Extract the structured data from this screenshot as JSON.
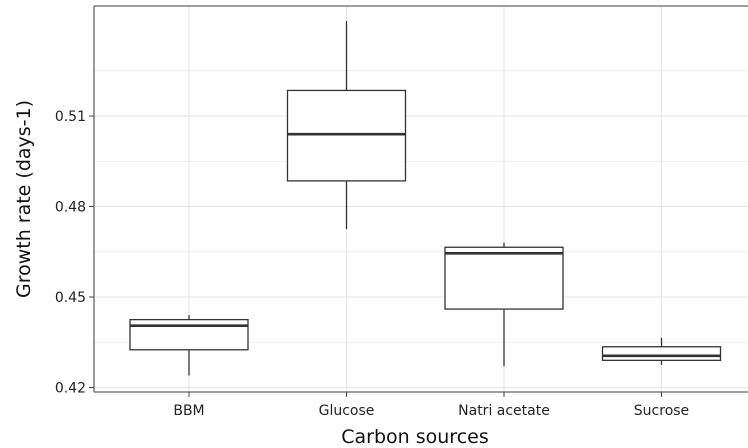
{
  "chart_data": {
    "type": "box",
    "xlabel": "Carbon sources",
    "ylabel": "Growth rate (days-1)",
    "ylim": [
      0.4185,
      0.5465
    ],
    "yticks": [
      0.42,
      0.45,
      0.48,
      0.51
    ],
    "ytick_labels": [
      "0.42",
      "0.45",
      "0.48",
      "0.51"
    ],
    "grid": true,
    "categories": [
      "BBM",
      "Glucose",
      "Natri acetate",
      "Sucrose"
    ],
    "boxes": [
      {
        "category": "BBM",
        "whisker_low": 0.424,
        "q1": 0.4325,
        "median": 0.4405,
        "q3": 0.4425,
        "whisker_high": 0.444
      },
      {
        "category": "Glucose",
        "whisker_low": 0.4725,
        "q1": 0.4885,
        "median": 0.504,
        "q3": 0.5185,
        "whisker_high": 0.5415
      },
      {
        "category": "Natri acetate",
        "whisker_low": 0.427,
        "q1": 0.446,
        "median": 0.4645,
        "q3": 0.4665,
        "whisker_high": 0.468
      },
      {
        "category": "Sucrose",
        "whisker_low": 0.4275,
        "q1": 0.429,
        "median": 0.4305,
        "q3": 0.4335,
        "whisker_high": 0.4365
      }
    ],
    "colors": {
      "box_stroke": "#333333",
      "box_fill": "#ffffff",
      "grid": "#e6e6e6",
      "panel_border": "#666666",
      "background": "#ffffff"
    }
  }
}
